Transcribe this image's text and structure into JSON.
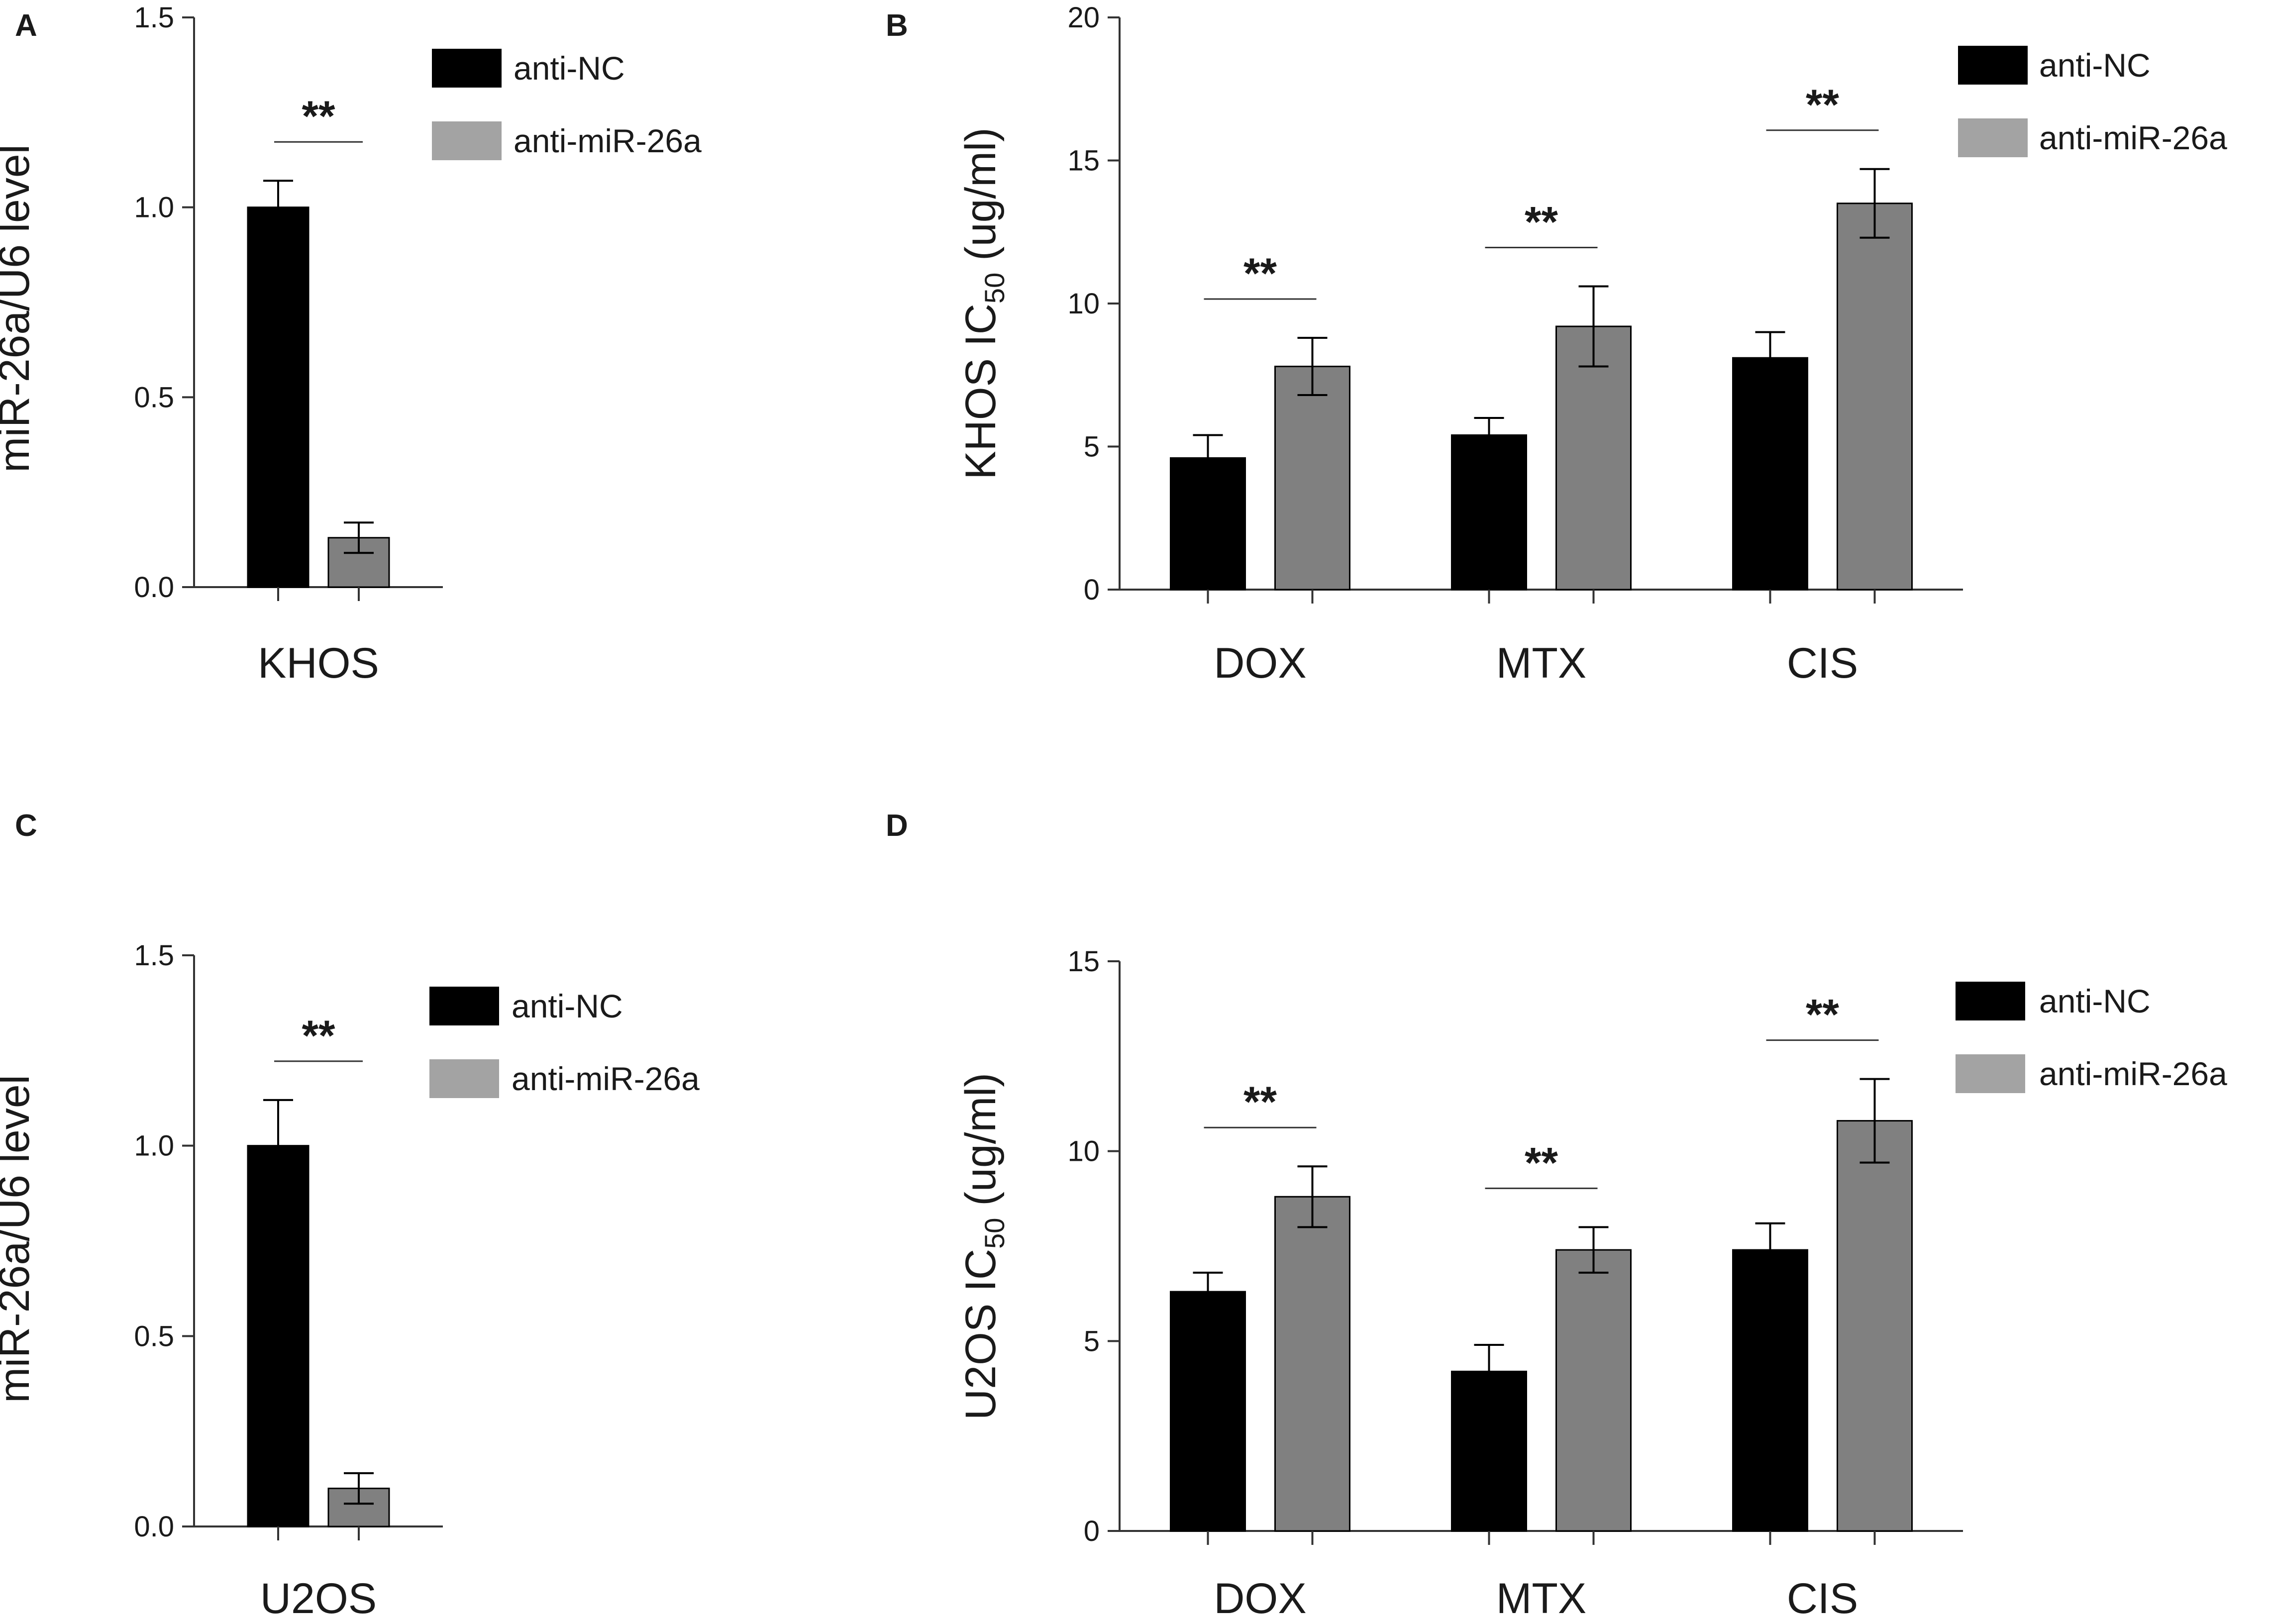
{
  "figure": {
    "type": "bar"
  },
  "colors": {
    "anti_nc": "#000000",
    "anti_mir": "#808080",
    "legend_anti_mir": "#a3a3a3",
    "axis": "#333333"
  },
  "chart_data": [
    {
      "id": "A",
      "type": "bar",
      "panel_label": "A",
      "ylabel": "miR-26a/U6 level",
      "ylim": [
        0,
        1.5
      ],
      "yticks": [
        0.0,
        0.5,
        1.0,
        1.5
      ],
      "ytick_labels": [
        "0.0",
        "0.5",
        "1.0",
        "1.5"
      ],
      "categories": [
        "KHOS"
      ],
      "series": [
        {
          "name": "anti-NC",
          "values": [
            1.0
          ],
          "errors": [
            0.07
          ]
        },
        {
          "name": "anti-miR-26a",
          "values": [
            0.13
          ],
          "errors": [
            0.04
          ]
        }
      ],
      "significance": [
        "**"
      ],
      "legend": [
        "anti-NC",
        "anti-miR-26a"
      ]
    },
    {
      "id": "B",
      "type": "bar",
      "panel_label": "B",
      "ylabel_main": "KHOS IC",
      "ylabel_sub": "50",
      "ylabel_unit": " (ug/ml)",
      "ylim": [
        0,
        20
      ],
      "yticks": [
        0,
        5,
        10,
        15,
        20
      ],
      "ytick_labels": [
        "0",
        "5",
        "10",
        "15",
        "20"
      ],
      "categories": [
        "DOX",
        "MTX",
        "CIS"
      ],
      "series": [
        {
          "name": "anti-NC",
          "values": [
            4.6,
            5.4,
            8.1
          ],
          "errors": [
            0.8,
            0.6,
            0.9
          ]
        },
        {
          "name": "anti-miR-26a",
          "values": [
            7.8,
            9.2,
            13.5
          ],
          "errors": [
            1.0,
            1.4,
            1.2
          ]
        }
      ],
      "significance": [
        "**",
        "**",
        "**"
      ],
      "legend": [
        "anti-NC",
        "anti-miR-26a"
      ]
    },
    {
      "id": "C",
      "type": "bar",
      "panel_label": "C",
      "ylabel": "miR-26a/U6 level",
      "ylim": [
        0,
        1.5
      ],
      "yticks": [
        0.0,
        0.5,
        1.0,
        1.5
      ],
      "ytick_labels": [
        "0.0",
        "0.5",
        "1.0",
        "1.5"
      ],
      "categories": [
        "U2OS"
      ],
      "series": [
        {
          "name": "anti-NC",
          "values": [
            1.0
          ],
          "errors": [
            0.12
          ]
        },
        {
          "name": "anti-miR-26a",
          "values": [
            0.1
          ],
          "errors": [
            0.04
          ]
        }
      ],
      "significance": [
        "**"
      ],
      "legend": [
        "anti-NC",
        "anti-miR-26a"
      ]
    },
    {
      "id": "D",
      "type": "bar",
      "panel_label": "D",
      "ylabel_main": "U2OS IC",
      "ylabel_sub": "50",
      "ylabel_unit": " (ug/ml)",
      "ylim": [
        0,
        15
      ],
      "yticks": [
        0,
        5,
        10,
        15
      ],
      "ytick_labels": [
        "0",
        "5",
        "10",
        "15"
      ],
      "categories": [
        "DOX",
        "MTX",
        "CIS"
      ],
      "series": [
        {
          "name": "anti-NC",
          "values": [
            6.3,
            4.2,
            7.4
          ],
          "errors": [
            0.5,
            0.7,
            0.7
          ]
        },
        {
          "name": "anti-miR-26a",
          "values": [
            8.8,
            7.4,
            10.8
          ],
          "errors": [
            0.8,
            0.6,
            1.1
          ]
        }
      ],
      "significance": [
        "**",
        "**",
        "**"
      ],
      "legend": [
        "anti-NC",
        "anti-miR-26a"
      ]
    }
  ]
}
